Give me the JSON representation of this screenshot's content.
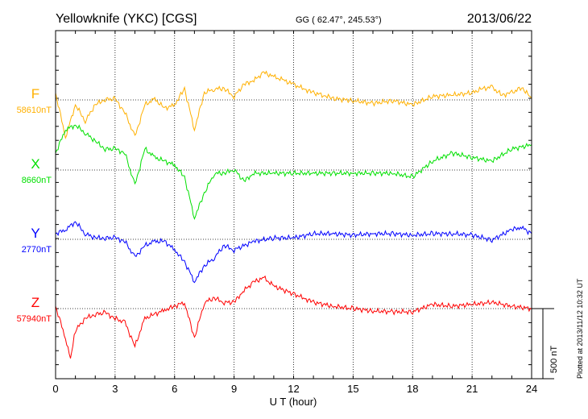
{
  "header": {
    "station": "Yellowknife (YKC)  [CGS]",
    "coords": "GG ( 62.47°, 245.53°)",
    "date": "2013/06/22"
  },
  "footer": {
    "plotted": "Plotted at 2013/11/12 10:32 UT"
  },
  "chart_data": {
    "type": "line",
    "title": "Yellowknife (YKC)  [CGS]",
    "xlabel": "U T (hour)",
    "xlim": [
      0,
      24
    ],
    "xticks": [
      "0",
      "3",
      "6",
      "9",
      "12",
      "15",
      "18",
      "21",
      "24"
    ],
    "scale_bar": "500 nT",
    "scale_bar_value": 500,
    "grid": true,
    "series": [
      {
        "name": "F",
        "baseline_label": "58610nT",
        "color": "#FFB000",
        "x": [
          0,
          0.5,
          1,
          1.5,
          2,
          2.5,
          3,
          3.5,
          4,
          4.5,
          5,
          5.5,
          6,
          6.5,
          7,
          7.5,
          8,
          8.5,
          9,
          9.5,
          10,
          10.5,
          11,
          11.5,
          12,
          12.5,
          13,
          13.5,
          14,
          15,
          16,
          17,
          18,
          19,
          20,
          21,
          21.5,
          22,
          22.5,
          23,
          23.5,
          24
        ],
        "values": [
          50,
          -265,
          -35,
          -150,
          -35,
          5,
          5,
          -90,
          -265,
          -35,
          5,
          -60,
          -35,
          80,
          -210,
          50,
          80,
          80,
          25,
          110,
          140,
          195,
          165,
          140,
          110,
          80,
          50,
          35,
          10,
          -5,
          -25,
          -5,
          -35,
          25,
          35,
          50,
          80,
          90,
          35,
          50,
          90,
          10
        ]
      },
      {
        "name": "X",
        "baseline_label": "8660nT",
        "color": "#00E000",
        "x": [
          0,
          0.5,
          1,
          1.5,
          2,
          2.5,
          3,
          3.5,
          4,
          4.5,
          5,
          5.5,
          6,
          6.5,
          7,
          7.5,
          8,
          8.5,
          9,
          9.5,
          10,
          11,
          12,
          13,
          14,
          15,
          16,
          17,
          18,
          19,
          20,
          21,
          22,
          23,
          24
        ],
        "values": [
          120,
          290,
          320,
          265,
          205,
          150,
          150,
          120,
          -110,
          150,
          90,
          63,
          35,
          -50,
          -340,
          -165,
          -23,
          -23,
          5,
          -80,
          -23,
          -23,
          -23,
          -23,
          -23,
          -23,
          -23,
          -23,
          -50,
          63,
          120,
          90,
          63,
          150,
          180
        ]
      },
      {
        "name": "Y",
        "baseline_label": "2770nT",
        "color": "#0000FF",
        "x": [
          0,
          0.5,
          1,
          1.5,
          2,
          2.5,
          3,
          3.5,
          4,
          4.5,
          5,
          5.5,
          6,
          6.5,
          7,
          7.5,
          8,
          8.5,
          9,
          10,
          11,
          12,
          13,
          14,
          15,
          16,
          17,
          18,
          19,
          20,
          21,
          22,
          23,
          23.5,
          24
        ],
        "values": [
          40,
          70,
          125,
          40,
          10,
          10,
          10,
          -15,
          -130,
          -45,
          -15,
          -15,
          -75,
          -160,
          -300,
          -190,
          -130,
          -45,
          -75,
          -15,
          10,
          10,
          40,
          40,
          30,
          40,
          40,
          30,
          40,
          40,
          30,
          -5,
          70,
          85,
          40
        ]
      },
      {
        "name": "Z",
        "baseline_label": "57940nT",
        "color": "#FF0000",
        "x": [
          0,
          0.5,
          0.75,
          1,
          1.5,
          2,
          2.5,
          3,
          3.5,
          4,
          4.5,
          5,
          5.5,
          6,
          6.5,
          7,
          7.5,
          8,
          8.5,
          9,
          9.5,
          10,
          10.5,
          11,
          12,
          12.5,
          13,
          14,
          15,
          16,
          17,
          18,
          19,
          20,
          21,
          22,
          23,
          24
        ],
        "values": [
          17,
          -210,
          -355,
          -155,
          -70,
          -40,
          -30,
          -70,
          -100,
          -270,
          -70,
          -40,
          -10,
          17,
          45,
          -210,
          45,
          75,
          45,
          45,
          130,
          190,
          220,
          160,
          105,
          75,
          45,
          17,
          0,
          -17,
          -23,
          -23,
          30,
          17,
          30,
          45,
          17,
          0
        ]
      }
    ]
  }
}
